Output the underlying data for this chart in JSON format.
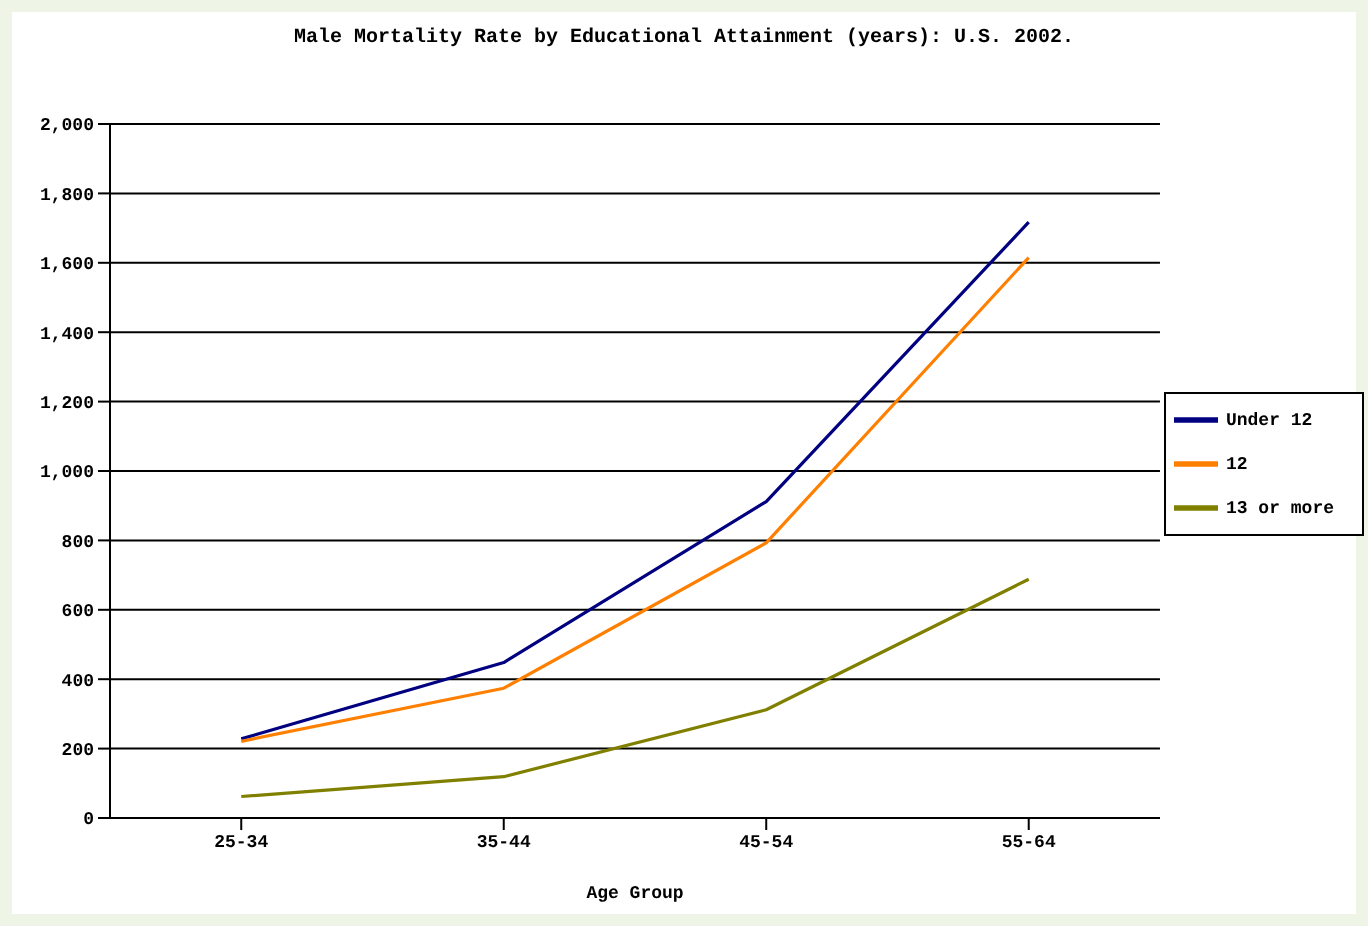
{
  "chart_data": {
    "type": "line",
    "title": "Male Mortality Rate by Educational Attainment (years): U.S. 2002.",
    "xlabel": "Age Group",
    "categories": [
      "25-34",
      "35-44",
      "45-54",
      "55-64"
    ],
    "series": [
      {
        "name": "Under 12",
        "color": "#000080",
        "values": [
          228,
          448,
          912,
          1717
        ]
      },
      {
        "name": "12",
        "color": "#ff7f00",
        "values": [
          221,
          374,
          793,
          1615
        ]
      },
      {
        "name": "13 or more",
        "color": "#808000",
        "values": [
          62,
          119,
          312,
          688
        ]
      }
    ],
    "ylim": [
      0,
      2000
    ],
    "yticks": [
      {
        "value": 0,
        "label": "0"
      },
      {
        "value": 200,
        "label": "200"
      },
      {
        "value": 400,
        "label": "400"
      },
      {
        "value": 600,
        "label": "600"
      },
      {
        "value": 800,
        "label": "800"
      },
      {
        "value": 1000,
        "label": "1,000"
      },
      {
        "value": 1200,
        "label": "1,200"
      },
      {
        "value": 1400,
        "label": "1,400"
      },
      {
        "value": 1600,
        "label": "1,600"
      },
      {
        "value": 1800,
        "label": "1,800"
      },
      {
        "value": 2000,
        "label": "2,000"
      }
    ],
    "grid": "y",
    "legend": "right",
    "marker": "none",
    "line_style": "solid"
  }
}
